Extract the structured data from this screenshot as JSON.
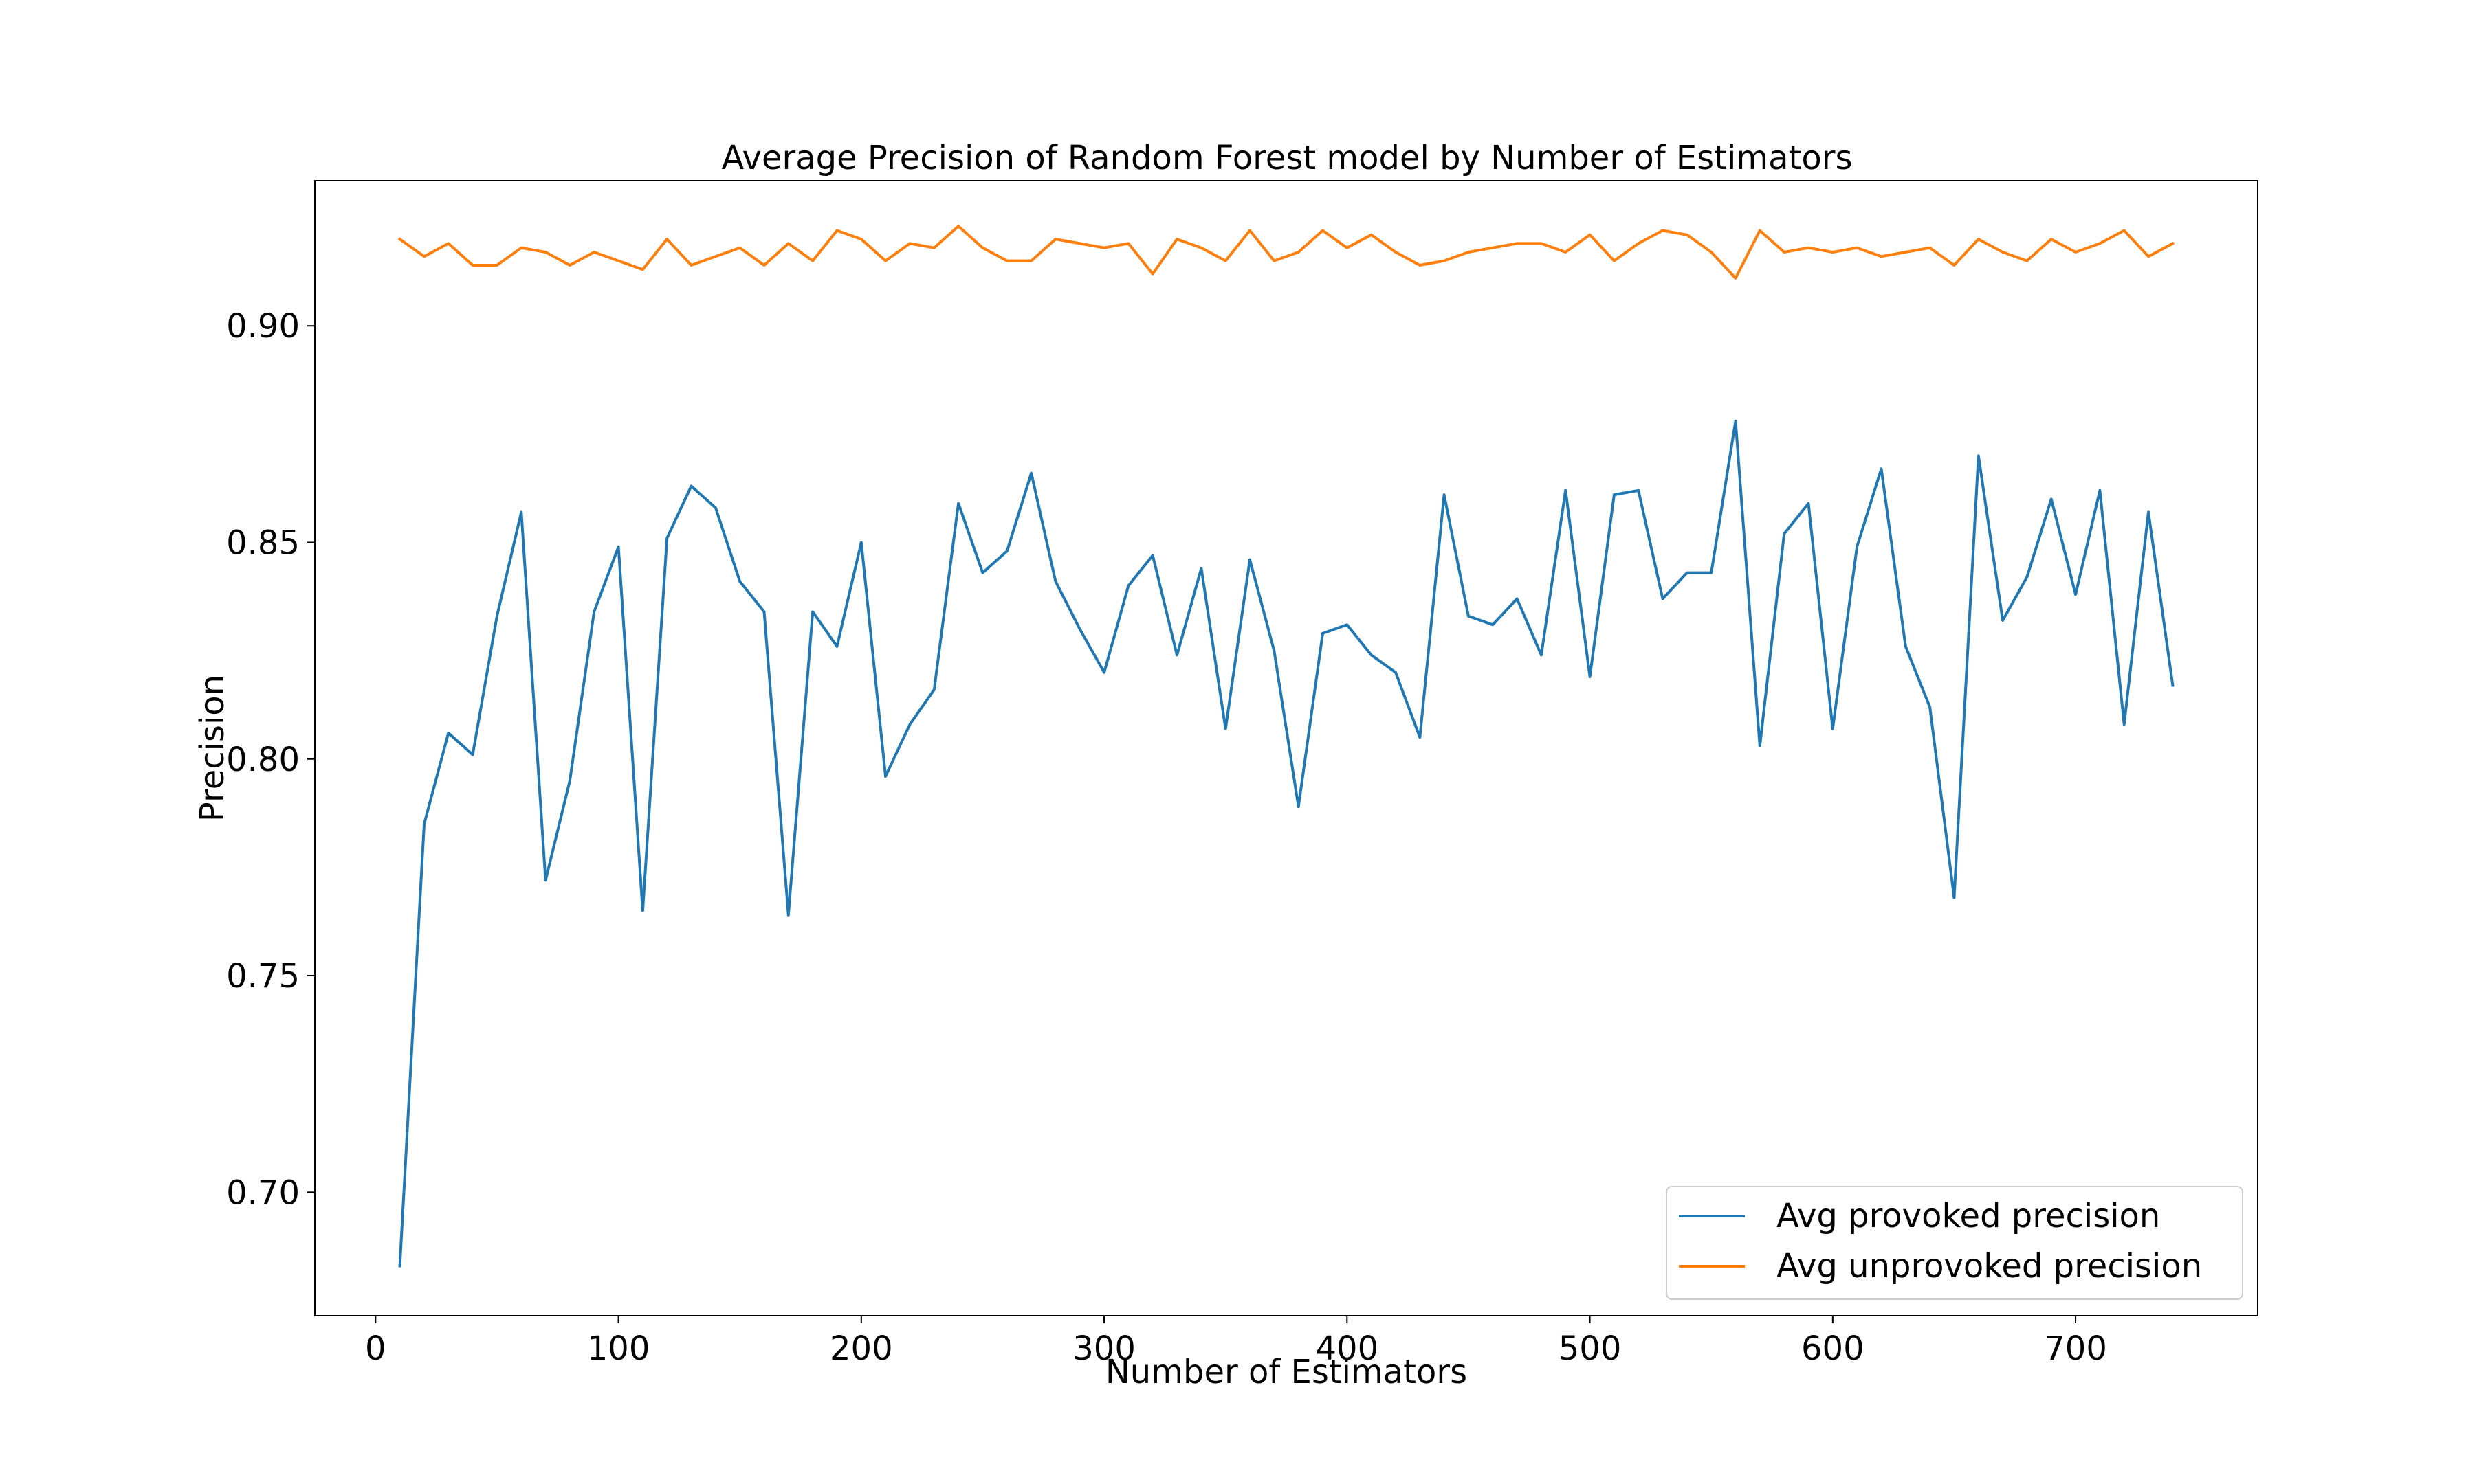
{
  "chart_data": {
    "type": "line",
    "title": "Average Precision of Random Forest model by Number of Estimators",
    "xlabel": "Number of Estimators",
    "ylabel": "Precision",
    "xlim": [
      -25,
      775
    ],
    "ylim": [
      0.6715,
      0.9335
    ],
    "xticks": [
      0,
      100,
      200,
      300,
      400,
      500,
      600,
      700
    ],
    "xtick_labels": [
      "0",
      "100",
      "200",
      "300",
      "400",
      "500",
      "600",
      "700"
    ],
    "yticks": [
      0.7,
      0.75,
      0.8,
      0.85,
      0.9
    ],
    "ytick_labels": [
      "0.70",
      "0.75",
      "0.80",
      "0.85",
      "0.90"
    ],
    "grid": false,
    "legend_position": "lower-right",
    "x": [
      10,
      20,
      30,
      40,
      50,
      60,
      70,
      80,
      90,
      100,
      110,
      120,
      130,
      140,
      150,
      160,
      170,
      180,
      190,
      200,
      210,
      220,
      230,
      240,
      250,
      260,
      270,
      280,
      290,
      300,
      310,
      320,
      330,
      340,
      350,
      360,
      370,
      380,
      390,
      400,
      410,
      420,
      430,
      440,
      450,
      460,
      470,
      480,
      490,
      500,
      510,
      520,
      530,
      540,
      550,
      560,
      570,
      580,
      590,
      600,
      610,
      620,
      630,
      640,
      650,
      660,
      670,
      680,
      690,
      700,
      710,
      720,
      730,
      740
    ],
    "series": [
      {
        "name": "Avg provoked precision",
        "color": "#1f77b4",
        "values": [
          0.683,
          0.785,
          0.806,
          0.801,
          0.833,
          0.857,
          0.772,
          0.795,
          0.834,
          0.849,
          0.765,
          0.851,
          0.863,
          0.858,
          0.841,
          0.834,
          0.764,
          0.834,
          0.826,
          0.85,
          0.796,
          0.808,
          0.816,
          0.859,
          0.843,
          0.848,
          0.866,
          0.841,
          0.83,
          0.82,
          0.84,
          0.847,
          0.824,
          0.844,
          0.807,
          0.846,
          0.825,
          0.789,
          0.829,
          0.831,
          0.824,
          0.82,
          0.805,
          0.861,
          0.833,
          0.831,
          0.837,
          0.824,
          0.862,
          0.819,
          0.861,
          0.862,
          0.837,
          0.843,
          0.843,
          0.878,
          0.803,
          0.852,
          0.859,
          0.807,
          0.849,
          0.867,
          0.826,
          0.812,
          0.768,
          0.87,
          0.832,
          0.842,
          0.86,
          0.838,
          0.862,
          0.808,
          0.857,
          0.817
        ]
      },
      {
        "name": "Avg unprovoked precision",
        "color": "#ff7f0e",
        "values": [
          0.92,
          0.916,
          0.919,
          0.914,
          0.914,
          0.918,
          0.917,
          0.914,
          0.917,
          0.915,
          0.913,
          0.92,
          0.914,
          0.916,
          0.918,
          0.914,
          0.919,
          0.915,
          0.922,
          0.92,
          0.915,
          0.919,
          0.918,
          0.923,
          0.918,
          0.915,
          0.915,
          0.92,
          0.919,
          0.918,
          0.919,
          0.912,
          0.92,
          0.918,
          0.915,
          0.922,
          0.915,
          0.917,
          0.922,
          0.918,
          0.921,
          0.917,
          0.914,
          0.915,
          0.917,
          0.918,
          0.919,
          0.919,
          0.917,
          0.921,
          0.915,
          0.919,
          0.922,
          0.921,
          0.917,
          0.911,
          0.922,
          0.917,
          0.918,
          0.917,
          0.918,
          0.916,
          0.917,
          0.918,
          0.914,
          0.92,
          0.917,
          0.915,
          0.92,
          0.917,
          0.919,
          0.922,
          0.916,
          0.919
        ]
      }
    ]
  }
}
